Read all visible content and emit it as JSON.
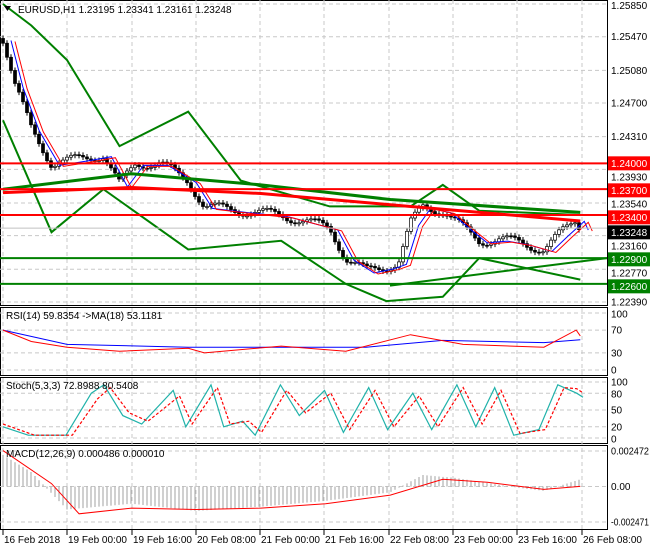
{
  "header": {
    "symbol": "EURUSD,H1",
    "ohlc": "1.23195 1.23341 1.23161 1.23248"
  },
  "chart_data": [
    {
      "type": "line",
      "title": "EURUSD,H1 1.23195 1.23341 1.23161 1.23248",
      "ylim": [
        1.2239,
        1.2585
      ],
      "y_ticks": [
        "1.25850",
        "1.25470",
        "1.25080",
        "1.24700",
        "1.24310",
        "1.23930",
        "1.23540",
        "1.23160",
        "1.22770",
        "1.22390"
      ],
      "x_ticks": [
        "16 Feb 2018",
        "19 Feb 00:00",
        "19 Feb 16:00",
        "20 Feb 08:00",
        "21 Feb 00:00",
        "21 Feb 16:00",
        "22 Feb 08:00",
        "23 Feb 00:00",
        "23 Feb 16:00",
        "26 Feb 08:00"
      ],
      "grid": true,
      "current_price": "1.23248",
      "levels": [
        {
          "value": "1.24000",
          "color": "#ff0000"
        },
        {
          "value": "1.23700",
          "color": "#ff0000"
        },
        {
          "value": "1.23400",
          "color": "#ff0000"
        },
        {
          "value": "1.22900",
          "color": "#008000"
        },
        {
          "value": "1.22600",
          "color": "#008000"
        }
      ],
      "close": [
        [
          "16 Feb 08:00",
          1.2545
        ],
        [
          "16 Feb 11:00",
          1.249
        ],
        [
          "16 Feb 15:00",
          1.244
        ],
        [
          "16 Feb 20:00",
          1.24
        ],
        [
          "19 Feb 03:00",
          1.2405
        ],
        [
          "19 Feb 09:00",
          1.241
        ],
        [
          "19 Feb 13:00",
          1.2375
        ],
        [
          "19 Feb 17:00",
          1.24
        ],
        [
          "19 Feb 23:00",
          1.24
        ],
        [
          "20 Feb 06:00",
          1.238
        ],
        [
          "20 Feb 10:00",
          1.235
        ],
        [
          "20 Feb 19:00",
          1.2345
        ],
        [
          "21 Feb 05:00",
          1.234
        ],
        [
          "21 Feb 17:00",
          1.2325
        ],
        [
          "21 Feb 21:00",
          1.229
        ],
        [
          "22 Feb 02:00",
          1.2275
        ],
        [
          "22 Feb 07:00",
          1.228
        ],
        [
          "22 Feb 10:00",
          1.2285
        ],
        [
          "22 Feb 13:00",
          1.233
        ],
        [
          "22 Feb 16:00",
          1.235
        ],
        [
          "22 Feb 21:00",
          1.2345
        ],
        [
          "23 Feb 02:00",
          1.2325
        ],
        [
          "23 Feb 06:00",
          1.231
        ],
        [
          "23 Feb 11:00",
          1.2312
        ],
        [
          "23 Feb 16:00",
          1.2308
        ],
        [
          "23 Feb 22:00",
          1.23
        ],
        [
          "26 Feb 02:00",
          1.2318
        ],
        [
          "26 Feb 06:00",
          1.2335
        ],
        [
          "26 Feb 07:00",
          1.23248
        ]
      ],
      "ma_green": [
        [
          "16 Feb 08:00",
          1.237
        ],
        [
          "19 Feb 16:00",
          1.2388
        ],
        [
          "21 Feb 00:00",
          1.2375
        ],
        [
          "22 Feb 08:00",
          1.2358
        ],
        [
          "26 Feb 07:00",
          1.2343
        ]
      ],
      "ma_red": [
        [
          "16 Feb 08:00",
          1.2366
        ],
        [
          "19 Feb 16:00",
          1.2372
        ],
        [
          "21 Feb 00:00",
          1.2365
        ],
        [
          "22 Feb 08:00",
          1.2352
        ],
        [
          "26 Feb 07:00",
          1.2333
        ]
      ],
      "bb_upper": [
        [
          "16 Feb 08:00",
          1.2585
        ],
        [
          "16 Feb 15:00",
          1.256
        ],
        [
          "19 Feb 00:00",
          1.252
        ],
        [
          "19 Feb 13:00",
          1.242
        ],
        [
          "20 Feb 06:00",
          1.246
        ],
        [
          "20 Feb 19:00",
          1.238
        ],
        [
          "21 Feb 17:00",
          1.235
        ],
        [
          "22 Feb 13:00",
          1.235
        ],
        [
          "22 Feb 21:00",
          1.2375
        ],
        [
          "23 Feb 06:00",
          1.2345
        ],
        [
          "26 Feb 07:00",
          1.234
        ]
      ],
      "bb_lower": [
        [
          "16 Feb 08:00",
          1.245
        ],
        [
          "16 Feb 20:00",
          1.232
        ],
        [
          "19 Feb 09:00",
          1.237
        ],
        [
          "20 Feb 06:00",
          1.23
        ],
        [
          "21 Feb 05:00",
          1.231
        ],
        [
          "21 Feb 21:00",
          1.226
        ],
        [
          "22 Feb 07:00",
          1.224
        ],
        [
          "22 Feb 21:00",
          1.2245
        ],
        [
          "23 Feb 06:00",
          1.229
        ],
        [
          "26 Feb 07:00",
          1.2265
        ]
      ]
    },
    {
      "type": "line",
      "title": "RSI(14) 59.8354 ->MA(18) 53.1181",
      "ylim": [
        0,
        100
      ],
      "y_ticks": [
        "100",
        "70",
        "30",
        "0"
      ],
      "rsi": [
        [
          "16 Feb 08:00",
          70
        ],
        [
          "16 Feb 15:00",
          50
        ],
        [
          "19 Feb 00:00",
          40
        ],
        [
          "19 Feb 13:00",
          33
        ],
        [
          "20 Feb 06:00",
          38
        ],
        [
          "20 Feb 10:00",
          30
        ],
        [
          "21 Feb 05:00",
          42
        ],
        [
          "21 Feb 21:00",
          33
        ],
        [
          "22 Feb 13:00",
          62
        ],
        [
          "23 Feb 02:00",
          45
        ],
        [
          "23 Feb 22:00",
          40
        ],
        [
          "26 Feb 06:00",
          70
        ],
        [
          "26 Feb 07:00",
          59.8
        ]
      ],
      "ma": [
        [
          "16 Feb 08:00",
          70
        ],
        [
          "19 Feb 00:00",
          45
        ],
        [
          "20 Feb 06:00",
          40
        ],
        [
          "22 Feb 02:00",
          40
        ],
        [
          "22 Feb 21:00",
          52
        ],
        [
          "23 Feb 22:00",
          48
        ],
        [
          "26 Feb 07:00",
          53.1
        ]
      ]
    },
    {
      "type": "line",
      "title": "Stoch(5,3,3) 72.8988 80.5408",
      "ylim": [
        0,
        100
      ],
      "y_ticks": [
        "100",
        "80",
        "50",
        "20",
        "0"
      ],
      "main": [
        [
          0,
          20
        ],
        [
          4,
          5
        ],
        [
          10,
          5
        ],
        [
          14,
          80
        ],
        [
          16,
          95
        ],
        [
          19,
          40
        ],
        [
          22,
          25
        ],
        [
          27,
          85
        ],
        [
          29,
          20
        ],
        [
          33,
          95
        ],
        [
          35,
          20
        ],
        [
          38,
          30
        ],
        [
          40,
          5
        ],
        [
          44,
          95
        ],
        [
          47,
          40
        ],
        [
          51,
          85
        ],
        [
          54,
          10
        ],
        [
          58,
          90
        ],
        [
          61,
          15
        ],
        [
          65,
          80
        ],
        [
          68,
          15
        ],
        [
          72,
          95
        ],
        [
          75,
          20
        ],
        [
          78,
          90
        ],
        [
          81,
          5
        ],
        [
          85,
          15
        ],
        [
          88,
          95
        ],
        [
          91,
          80
        ],
        [
          92,
          72.9
        ]
      ],
      "signal": [
        [
          0,
          25
        ],
        [
          5,
          5
        ],
        [
          11,
          5
        ],
        [
          15,
          70
        ],
        [
          17,
          90
        ],
        [
          20,
          45
        ],
        [
          23,
          30
        ],
        [
          28,
          75
        ],
        [
          30,
          25
        ],
        [
          34,
          90
        ],
        [
          36,
          25
        ],
        [
          39,
          30
        ],
        [
          41,
          10
        ],
        [
          45,
          85
        ],
        [
          48,
          45
        ],
        [
          52,
          80
        ],
        [
          55,
          15
        ],
        [
          59,
          85
        ],
        [
          62,
          20
        ],
        [
          66,
          75
        ],
        [
          69,
          20
        ],
        [
          73,
          90
        ],
        [
          76,
          25
        ],
        [
          79,
          85
        ],
        [
          82,
          8
        ],
        [
          86,
          15
        ],
        [
          89,
          90
        ],
        [
          91,
          88
        ],
        [
          92,
          80.5
        ]
      ]
    },
    {
      "type": "bar",
      "title": "MACD(12,26,9) 0.000486 0.000010",
      "ylim": [
        -0.002471,
        0.002472
      ],
      "y_ticks": [
        "0.002472",
        "0.00",
        "-0.002471"
      ],
      "histogram": [
        [
          "16 Feb 08:00",
          0.0022
        ],
        [
          "16 Feb 15:00",
          0.001
        ],
        [
          "19 Feb 00:00",
          -0.0016
        ],
        [
          "19 Feb 16:00",
          -0.0012
        ],
        [
          "20 Feb 08:00",
          -0.0017
        ],
        [
          "21 Feb 00:00",
          -0.0014
        ],
        [
          "21 Feb 16:00",
          -0.001
        ],
        [
          "22 Feb 08:00",
          -0.0004
        ],
        [
          "22 Feb 16:00",
          0.0008
        ],
        [
          "23 Feb 00:00",
          0.0006
        ],
        [
          "23 Feb 16:00",
          -0.0001
        ],
        [
          "23 Feb 22:00",
          -0.0003
        ],
        [
          "26 Feb 07:00",
          0.0005
        ]
      ],
      "signal": [
        [
          "16 Feb 08:00",
          0.0025
        ],
        [
          "16 Feb 20:00",
          0.0002
        ],
        [
          "19 Feb 03:00",
          -0.0019
        ],
        [
          "19 Feb 16:00",
          -0.0015
        ],
        [
          "20 Feb 08:00",
          -0.0016
        ],
        [
          "21 Feb 00:00",
          -0.0015
        ],
        [
          "21 Feb 16:00",
          -0.0012
        ],
        [
          "22 Feb 08:00",
          -0.0006
        ],
        [
          "22 Feb 21:00",
          0.0005
        ],
        [
          "23 Feb 08:00",
          0.0003
        ],
        [
          "23 Feb 22:00",
          -0.0002
        ],
        [
          "26 Feb 07:00",
          1e-05
        ]
      ]
    }
  ]
}
